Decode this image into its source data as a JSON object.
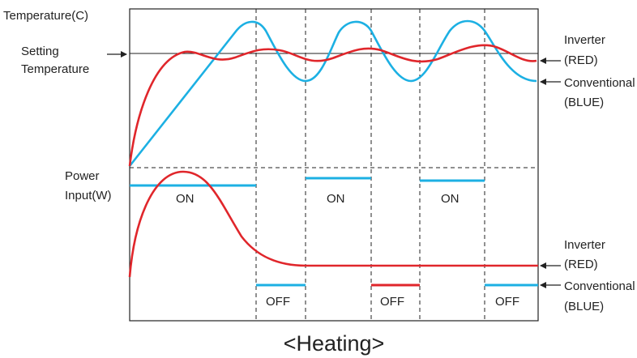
{
  "colors": {
    "inverter": "#e0262b",
    "conventional": "#1cb0e3",
    "ink": "#222222"
  },
  "labels": {
    "temperature_axis": "Temperature(C)",
    "setting_line1": "Setting",
    "setting_line2": "Temperature",
    "power_line1": "Power",
    "power_line2": "Input(W)",
    "on": "ON",
    "off": "OFF",
    "inverter": "Inverter",
    "red": "(RED)",
    "conventional": "Conventional",
    "blue": "(BLUE)",
    "caption": "<Heating>"
  },
  "legend_entries": [
    {
      "name": "Inverter",
      "color_word": "(RED)"
    },
    {
      "name": "Conventional",
      "color_word": "(BLUE)"
    }
  ]
}
